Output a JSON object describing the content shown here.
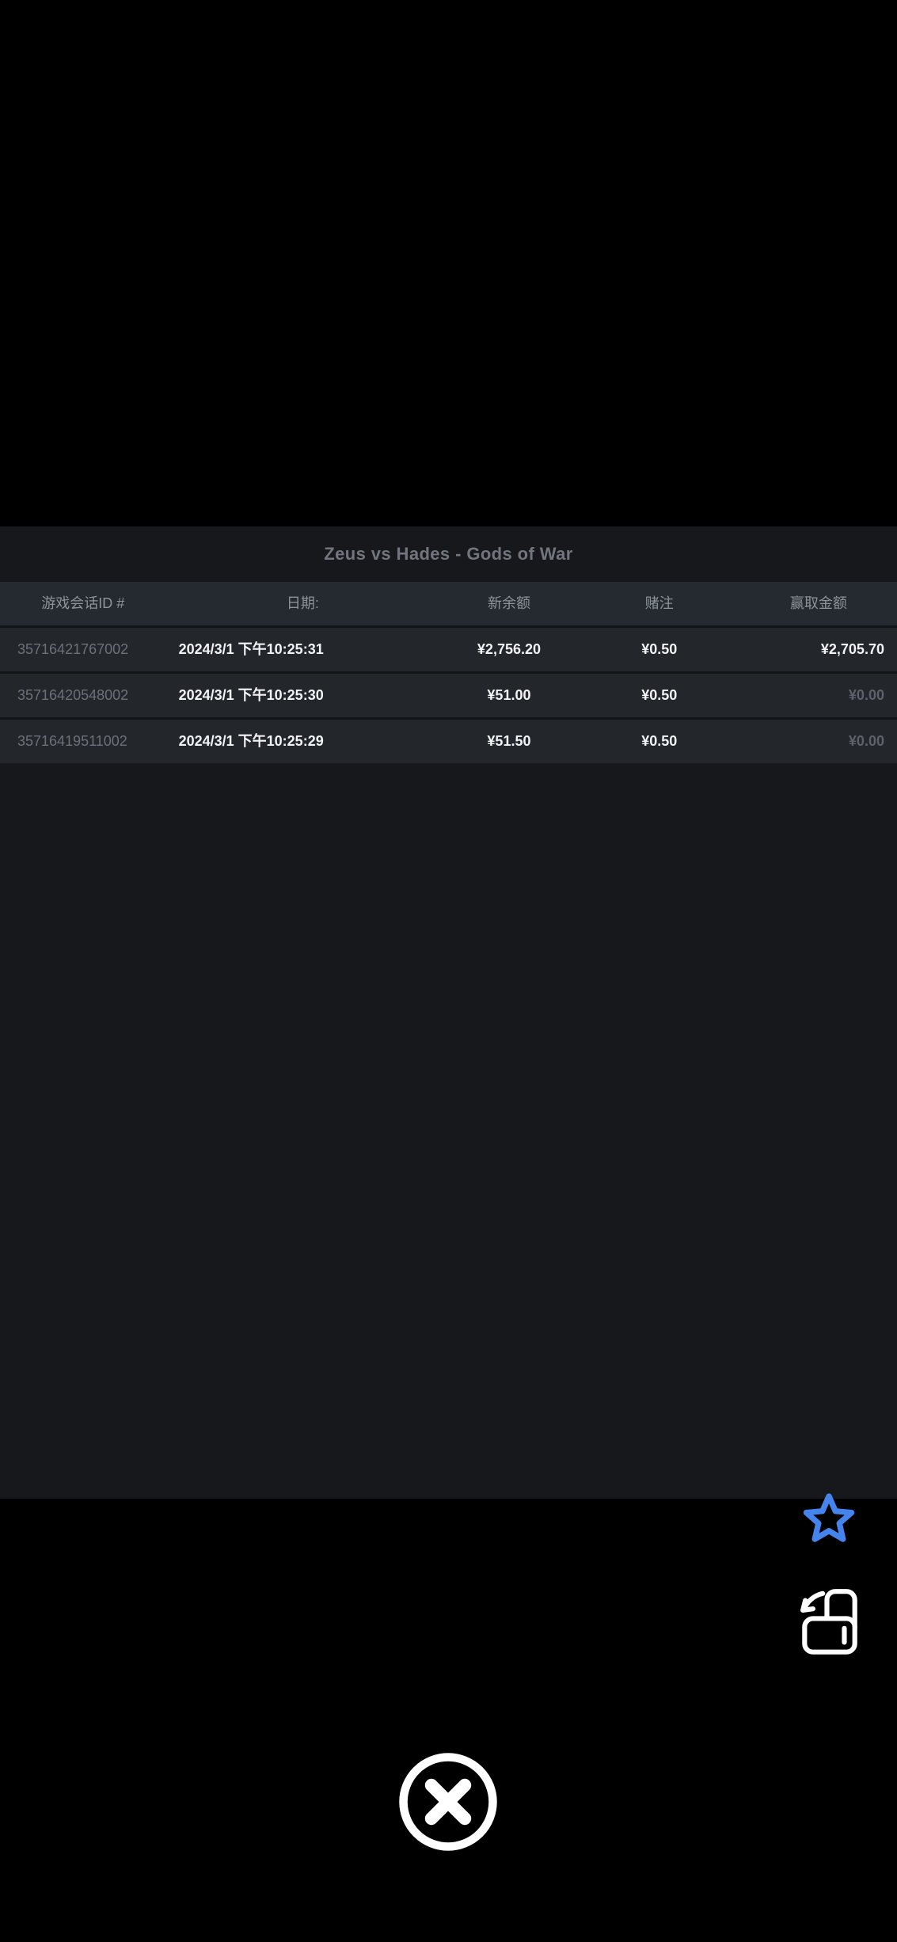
{
  "title": "Zeus vs Hades - Gods of War",
  "table": {
    "columns": [
      {
        "key": "session_id",
        "label": "游戏会话ID #"
      },
      {
        "key": "date",
        "label": "日期:"
      },
      {
        "key": "new_balance",
        "label": "新余额"
      },
      {
        "key": "bet",
        "label": "赌注"
      },
      {
        "key": "win",
        "label": "赢取金额"
      }
    ],
    "rows": [
      {
        "session_id": "35716421767002",
        "date": "2024/3/1 下午10:25:31",
        "new_balance": "¥2,756.20",
        "bet": "¥0.50",
        "win": "¥2,705.70",
        "win_muted": false
      },
      {
        "session_id": "35716420548002",
        "date": "2024/3/1 下午10:25:30",
        "new_balance": "¥51.00",
        "bet": "¥0.50",
        "win": "¥0.00",
        "win_muted": true
      },
      {
        "session_id": "35716419511002",
        "date": "2024/3/1 下午10:25:29",
        "new_balance": "¥51.50",
        "bet": "¥0.50",
        "win": "¥0.00",
        "win_muted": true
      }
    ]
  },
  "icons": {
    "favorite": "star-icon",
    "rotate": "rotate-screen-icon",
    "close": "close-icon"
  },
  "colors": {
    "background": "#000000",
    "panel": "#17181c",
    "header_row": "#252a30",
    "row": "#23272c",
    "divider": "#141519",
    "title_text": "#71767e",
    "header_text": "#8d939b",
    "id_text": "#6b7178",
    "value_text": "#f2f3f5",
    "muted_value_text": "#5d626a",
    "star_blue": "#4584ec",
    "icon_white": "#ffffff"
  }
}
